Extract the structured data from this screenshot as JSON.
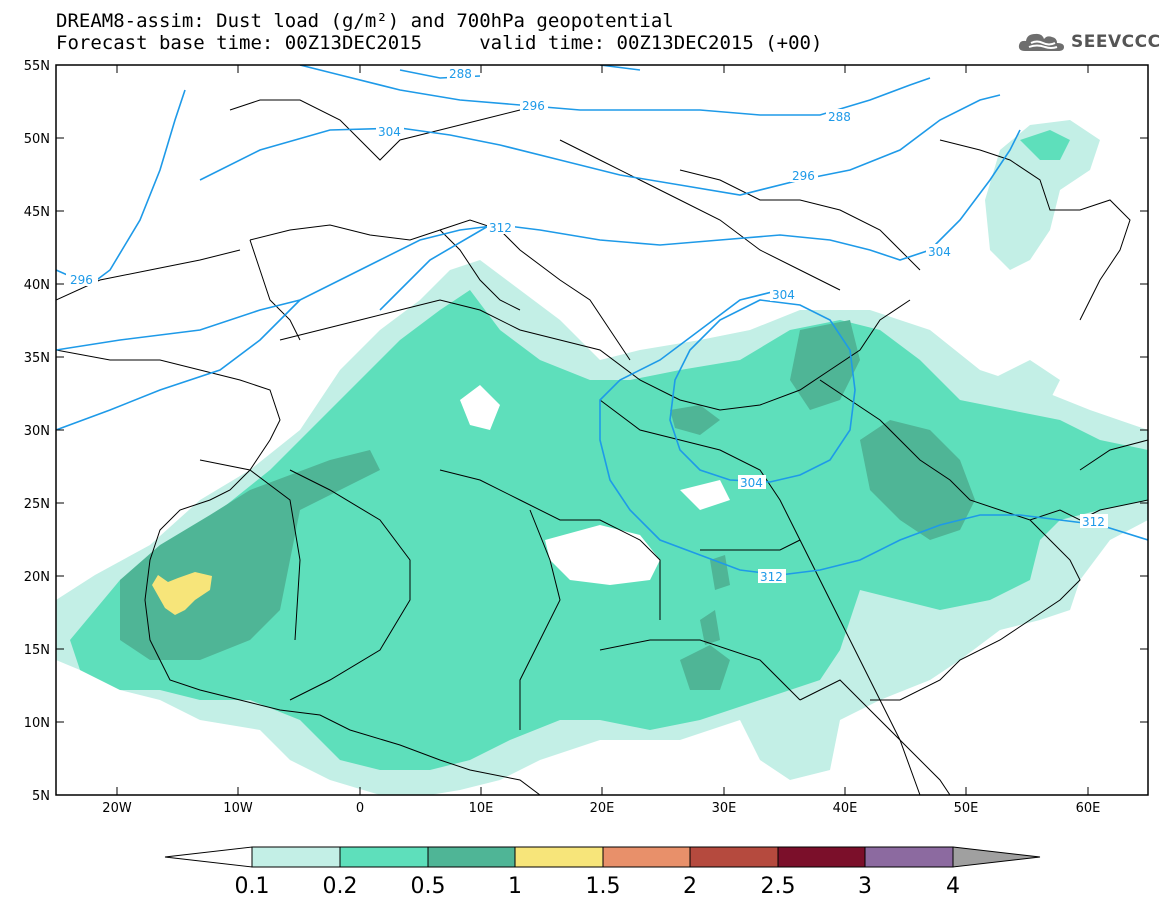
{
  "title": {
    "line1": "DREAM8-assim: Dust load (g/m²) and 700hPa geopotential",
    "line2": "Forecast base time: 00Z13DEC2015     valid time: 00Z13DEC2015 (+00)"
  },
  "logo": {
    "text": "SEEVCCC",
    "icon": "cloud-icon"
  },
  "map": {
    "lat_labels": [
      "55N",
      "50N",
      "45N",
      "40N",
      "35N",
      "30N",
      "25N",
      "20N",
      "15N",
      "10N",
      "5N"
    ],
    "lon_labels": [
      "20W",
      "10W",
      "0",
      "10E",
      "20E",
      "30E",
      "40E",
      "50E",
      "60E"
    ],
    "extent": {
      "lon": [
        -25,
        65
      ],
      "lat": [
        5,
        55
      ]
    },
    "contour_labels": [
      "288",
      "296",
      "304",
      "296",
      "288",
      "296",
      "312",
      "304",
      "304",
      "304",
      "312",
      "312"
    ],
    "dust_levels": {
      "0.1-0.2": "#c3efe6",
      "0.2-0.5": "#5edfbb",
      "0.5-1": "#4fb596",
      "1-1.5": "#f7e57a"
    },
    "contour_color": "#1e9ae8"
  },
  "colorbar": {
    "labels": [
      "0.1",
      "0.2",
      "0.5",
      "1",
      "1.5",
      "2",
      "2.5",
      "3",
      "4"
    ],
    "colors": [
      "#c3efe6",
      "#5edfbb",
      "#4fb596",
      "#f7e57a",
      "#e8906a",
      "#b54a3e",
      "#7b0f2a",
      "#8c6aa0"
    ],
    "under_color": "#ffffff",
    "over_color": "#a0a0a0"
  }
}
